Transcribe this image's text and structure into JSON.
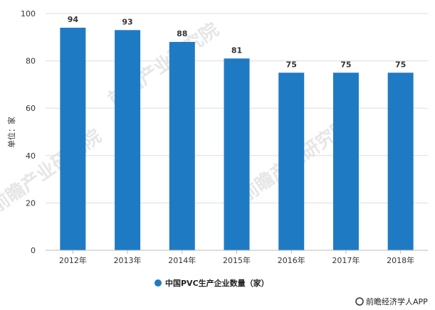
{
  "chart_data": {
    "type": "bar",
    "categories": [
      "2012年",
      "2013年",
      "2014年",
      "2015年",
      "2016年",
      "2017年",
      "2018年"
    ],
    "series": [
      {
        "name": "中国PVC生产企业数量（家）",
        "values": [
          94,
          93,
          88,
          81,
          75,
          75,
          75
        ]
      }
    ],
    "data_labels": [
      "94",
      "93",
      "88",
      "81",
      "75",
      "75",
      "75"
    ],
    "ylabel": "单位：家",
    "ylim": [
      0,
      100
    ],
    "yticks": [
      "0",
      "20",
      "40",
      "60",
      "80",
      "100"
    ],
    "grid": true,
    "legend_position": "bottom",
    "bar_color": "#1f7ac4",
    "grid_color": "#dddddd"
  },
  "watermark": {
    "text": "前瞻产业研究院"
  },
  "source": {
    "text": "前瞻经济学人APP"
  }
}
